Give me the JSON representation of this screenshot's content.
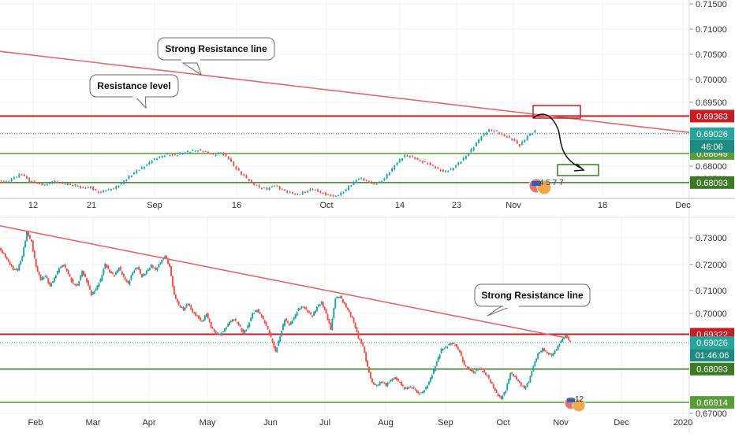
{
  "chart_data": [
    {
      "type": "candlestick",
      "panel": "top",
      "x_tick_labels": [
        "12",
        "21",
        "Sep",
        "16",
        "Oct",
        "14",
        "23",
        "Nov",
        "18",
        "Dec"
      ],
      "y_tick_labels": [
        "0.71500",
        "0.71000",
        "0.70500",
        "0.70000",
        "0.69500",
        "0.68500",
        "0.68000"
      ],
      "ylim": [
        0.6785,
        0.7158
      ],
      "horizontal_levels": [
        {
          "value": 0.69363,
          "label": "0.69363",
          "color": "#c81d25",
          "role": "resistance"
        },
        {
          "value": 0.68649,
          "label": "0.68649",
          "color": "#5a9c3a",
          "role": "support"
        },
        {
          "value": 0.68093,
          "label": "0.68093",
          "color": "#3d7a28",
          "role": "support"
        }
      ],
      "current_price": {
        "value": 0.69026,
        "label": "0.69026",
        "countdown": "46:06",
        "color": "#26a69a"
      },
      "trendline": {
        "name": "Strong Resistance line",
        "from": [
          0.0,
          0.706
        ],
        "to": [
          1.0,
          0.6905
        ]
      },
      "annotations": [
        {
          "text": "Strong Resistance line"
        },
        {
          "text": "Resistance level"
        }
      ],
      "event_badge": {
        "text": "4 5 7 7"
      },
      "price_series": [
        0.6812,
        0.681,
        0.6819,
        0.6826,
        0.6812,
        0.6808,
        0.6804,
        0.6811,
        0.6809,
        0.6806,
        0.6803,
        0.6799,
        0.68,
        0.679,
        0.6795,
        0.6798,
        0.6808,
        0.682,
        0.6832,
        0.684,
        0.6852,
        0.6858,
        0.6863,
        0.6861,
        0.6866,
        0.6869,
        0.6871,
        0.6868,
        0.6862,
        0.6867,
        0.6855,
        0.6835,
        0.6822,
        0.6809,
        0.68,
        0.6797,
        0.6804,
        0.6795,
        0.679,
        0.6786,
        0.6792,
        0.6797,
        0.679,
        0.6785,
        0.6783,
        0.6792,
        0.6806,
        0.6818,
        0.6812,
        0.6806,
        0.6812,
        0.683,
        0.6848,
        0.6861,
        0.6858,
        0.685,
        0.6846,
        0.6838,
        0.683,
        0.6834,
        0.6846,
        0.686,
        0.6878,
        0.6898,
        0.691,
        0.6906,
        0.6898,
        0.6892,
        0.688,
        0.6898,
        0.6908
      ]
    },
    {
      "type": "candlestick",
      "panel": "bottom",
      "x_tick_labels": [
        "Feb",
        "Mar",
        "Apr",
        "May",
        "Jun",
        "Jul",
        "Aug",
        "Sep",
        "Oct",
        "Nov",
        "Dec",
        "2020"
      ],
      "y_tick_labels": [
        "0.73000",
        "0.72000",
        "0.71000",
        "0.70000",
        "0.67000"
      ],
      "ylim": [
        0.665,
        0.7345
      ],
      "horizontal_levels": [
        {
          "value": 0.69322,
          "label": "0.69322",
          "color": "#c81d25",
          "role": "resistance"
        },
        {
          "value": 0.68093,
          "label": "0.68093",
          "color": "#3d7a28",
          "role": "support"
        },
        {
          "value": 0.66914,
          "label": "0.66914",
          "color": "#5a9c3a",
          "role": "support"
        }
      ],
      "current_price": {
        "value": 0.69026,
        "label": "0.69026",
        "countdown": "01:46:06",
        "color": "#26a69a"
      },
      "trendline": {
        "name": "Strong Resistance line",
        "from": [
          0.0,
          0.7315
        ],
        "to": [
          0.82,
          0.692
        ]
      },
      "annotations": [
        {
          "text": "Strong Resistance line"
        }
      ],
      "event_badge": {
        "text": "12"
      },
      "price_series": [
        0.7235,
        0.7215,
        0.7188,
        0.7162,
        0.716,
        0.7208,
        0.7292,
        0.7258,
        0.717,
        0.7125,
        0.714,
        0.7102,
        0.713,
        0.7166,
        0.7178,
        0.7145,
        0.711,
        0.7104,
        0.7155,
        0.712,
        0.7072,
        0.7092,
        0.7124,
        0.718,
        0.7152,
        0.714,
        0.7168,
        0.7134,
        0.711,
        0.7152,
        0.717,
        0.7135,
        0.7154,
        0.7175,
        0.716,
        0.7186,
        0.721,
        0.717,
        0.707,
        0.7035,
        0.702,
        0.7042,
        0.701,
        0.6996,
        0.6975,
        0.7005,
        0.6958,
        0.6935,
        0.693,
        0.695,
        0.6976,
        0.6985,
        0.6966,
        0.6935,
        0.696,
        0.7005,
        0.7018,
        0.6995,
        0.6962,
        0.692,
        0.687,
        0.6925,
        0.6985,
        0.6965,
        0.699,
        0.7022,
        0.703,
        0.7012,
        0.6996,
        0.7028,
        0.7045,
        0.7005,
        0.695,
        0.706,
        0.7065,
        0.7038,
        0.701,
        0.6975,
        0.692,
        0.689,
        0.6815,
        0.676,
        0.675,
        0.6766,
        0.6752,
        0.677,
        0.6778,
        0.6762,
        0.674,
        0.6746,
        0.6742,
        0.6722,
        0.6728,
        0.6752,
        0.679,
        0.6835,
        0.6878,
        0.6886,
        0.69,
        0.6895,
        0.687,
        0.6822,
        0.681,
        0.6796,
        0.6812,
        0.6802,
        0.6784,
        0.6755,
        0.6724,
        0.6705,
        0.6735,
        0.6795,
        0.6782,
        0.676,
        0.6742,
        0.6765,
        0.682,
        0.6862,
        0.688,
        0.6866,
        0.6858,
        0.688,
        0.6908,
        0.6928,
        0.6905
      ]
    }
  ]
}
